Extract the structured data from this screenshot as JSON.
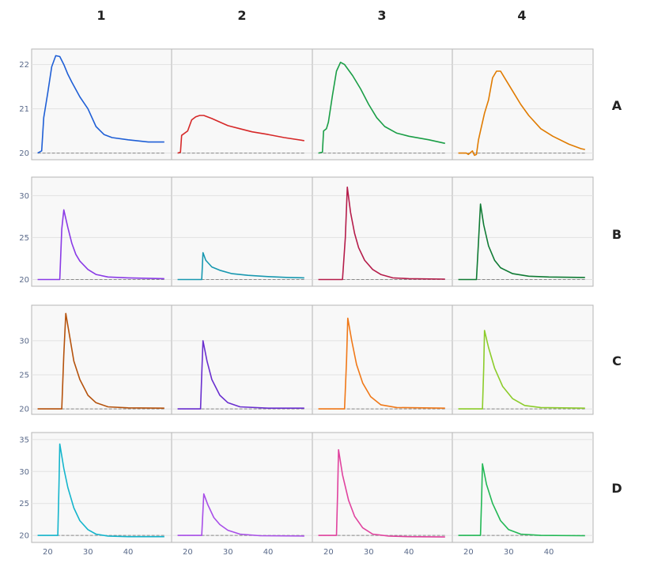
{
  "columns": [
    "1",
    "2",
    "3",
    "4"
  ],
  "rows": [
    "A",
    "B",
    "C",
    "D"
  ],
  "chart_data": {
    "type": "line",
    "layout": "4x4 small multiples, shared x axis per column, shared y axis per row",
    "xlim": [
      16,
      51
    ],
    "x_ticks": [
      20,
      30,
      40
    ],
    "grid": "horizontal gridlines only",
    "panel_background": "#f8f8f8",
    "baseline": {
      "value": 20,
      "style": "dashed",
      "color": "#888888"
    },
    "row_axes": [
      {
        "row": "A",
        "ylim": [
          19.85,
          22.35
        ],
        "y_ticks": [
          20,
          21,
          22
        ]
      },
      {
        "row": "B",
        "ylim": [
          19.2,
          32.2
        ],
        "y_ticks": [
          20,
          25,
          30
        ]
      },
      {
        "row": "C",
        "ylim": [
          19.2,
          35.2
        ],
        "y_ticks": [
          20,
          25,
          30
        ]
      },
      {
        "row": "D",
        "ylim": [
          18.9,
          36.1
        ],
        "y_ticks": [
          20,
          25,
          30,
          35
        ]
      }
    ],
    "panels": [
      {
        "row": "A",
        "col": "1",
        "color": "#1f5fd6",
        "points": [
          [
            17.5,
            20.0
          ],
          [
            18.5,
            20.05
          ],
          [
            19.0,
            20.8
          ],
          [
            20.0,
            21.35
          ],
          [
            21.0,
            21.95
          ],
          [
            22.0,
            22.2
          ],
          [
            23.0,
            22.18
          ],
          [
            24.0,
            22.0
          ],
          [
            25.0,
            21.78
          ],
          [
            26.0,
            21.6
          ],
          [
            28.0,
            21.27
          ],
          [
            30.0,
            21.0
          ],
          [
            32.0,
            20.6
          ],
          [
            34.0,
            20.42
          ],
          [
            36.0,
            20.35
          ],
          [
            40.0,
            20.3
          ],
          [
            45.0,
            20.25
          ],
          [
            49.0,
            20.25
          ]
        ]
      },
      {
        "row": "A",
        "col": "2",
        "color": "#d62828",
        "points": [
          [
            17.5,
            20.0
          ],
          [
            18.2,
            20.02
          ],
          [
            18.5,
            20.4
          ],
          [
            20.0,
            20.5
          ],
          [
            21.0,
            20.75
          ],
          [
            22.0,
            20.82
          ],
          [
            23.0,
            20.85
          ],
          [
            24.0,
            20.85
          ],
          [
            26.0,
            20.78
          ],
          [
            28.0,
            20.7
          ],
          [
            30.0,
            20.62
          ],
          [
            33.0,
            20.55
          ],
          [
            36.0,
            20.48
          ],
          [
            40.0,
            20.42
          ],
          [
            44.0,
            20.35
          ],
          [
            49.0,
            20.28
          ]
        ]
      },
      {
        "row": "A",
        "col": "3",
        "color": "#1a9e46",
        "points": [
          [
            17.5,
            20.0
          ],
          [
            18.5,
            20.02
          ],
          [
            18.8,
            20.5
          ],
          [
            19.5,
            20.55
          ],
          [
            20.0,
            20.7
          ],
          [
            21.0,
            21.3
          ],
          [
            22.0,
            21.85
          ],
          [
            23.0,
            22.05
          ],
          [
            24.0,
            22.0
          ],
          [
            26.0,
            21.75
          ],
          [
            28.0,
            21.45
          ],
          [
            30.0,
            21.1
          ],
          [
            32.0,
            20.8
          ],
          [
            34.0,
            20.6
          ],
          [
            37.0,
            20.45
          ],
          [
            40.0,
            20.38
          ],
          [
            45.0,
            20.3
          ],
          [
            49.0,
            20.22
          ]
        ]
      },
      {
        "row": "A",
        "col": "4",
        "color": "#e07b00",
        "points": [
          [
            17.5,
            20.0
          ],
          [
            19.5,
            20.0
          ],
          [
            20.0,
            19.97
          ],
          [
            21.0,
            20.05
          ],
          [
            21.5,
            19.95
          ],
          [
            22.0,
            19.97
          ],
          [
            22.5,
            20.3
          ],
          [
            23.0,
            20.5
          ],
          [
            24.0,
            20.9
          ],
          [
            25.0,
            21.2
          ],
          [
            26.0,
            21.7
          ],
          [
            27.0,
            21.85
          ],
          [
            28.0,
            21.85
          ],
          [
            29.0,
            21.7
          ],
          [
            31.0,
            21.4
          ],
          [
            33.0,
            21.1
          ],
          [
            35.0,
            20.85
          ],
          [
            38.0,
            20.55
          ],
          [
            41.0,
            20.38
          ],
          [
            45.0,
            20.2
          ],
          [
            48.0,
            20.1
          ],
          [
            49.0,
            20.08
          ]
        ]
      },
      {
        "row": "B",
        "col": "1",
        "color": "#8a3ae6",
        "points": [
          [
            17.5,
            20.0
          ],
          [
            23.0,
            20.0
          ],
          [
            23.5,
            26.0
          ],
          [
            24.0,
            28.3
          ],
          [
            25.0,
            26.2
          ],
          [
            26.0,
            24.3
          ],
          [
            27.0,
            23.0
          ],
          [
            28.0,
            22.2
          ],
          [
            30.0,
            21.2
          ],
          [
            32.0,
            20.6
          ],
          [
            35.0,
            20.3
          ],
          [
            40.0,
            20.2
          ],
          [
            49.0,
            20.1
          ]
        ]
      },
      {
        "row": "B",
        "col": "2",
        "color": "#1898b0",
        "points": [
          [
            17.5,
            20.0
          ],
          [
            23.5,
            20.0
          ],
          [
            23.8,
            23.2
          ],
          [
            24.5,
            22.3
          ],
          [
            26.0,
            21.5
          ],
          [
            28.0,
            21.1
          ],
          [
            31.0,
            20.7
          ],
          [
            35.0,
            20.5
          ],
          [
            40.0,
            20.35
          ],
          [
            45.0,
            20.25
          ],
          [
            49.0,
            20.2
          ]
        ]
      },
      {
        "row": "B",
        "col": "3",
        "color": "#b51c4a",
        "points": [
          [
            17.5,
            20.0
          ],
          [
            23.5,
            20.0
          ],
          [
            24.2,
            25.0
          ],
          [
            24.7,
            31.0
          ],
          [
            25.5,
            28.0
          ],
          [
            26.5,
            25.5
          ],
          [
            27.5,
            23.8
          ],
          [
            29.0,
            22.3
          ],
          [
            31.0,
            21.2
          ],
          [
            33.0,
            20.6
          ],
          [
            36.0,
            20.2
          ],
          [
            40.0,
            20.1
          ],
          [
            49.0,
            20.05
          ]
        ]
      },
      {
        "row": "B",
        "col": "4",
        "color": "#0f7a33",
        "points": [
          [
            17.5,
            20.0
          ],
          [
            22.0,
            20.0
          ],
          [
            22.5,
            24.5
          ],
          [
            23.0,
            29.0
          ],
          [
            23.8,
            26.5
          ],
          [
            25.0,
            24.0
          ],
          [
            26.5,
            22.3
          ],
          [
            28.0,
            21.4
          ],
          [
            31.0,
            20.7
          ],
          [
            35.0,
            20.4
          ],
          [
            40.0,
            20.3
          ],
          [
            49.0,
            20.25
          ]
        ]
      },
      {
        "row": "C",
        "col": "1",
        "color": "#b5520c",
        "points": [
          [
            17.5,
            20.0
          ],
          [
            23.5,
            20.0
          ],
          [
            24.0,
            28.0
          ],
          [
            24.5,
            34.0
          ],
          [
            25.5,
            30.5
          ],
          [
            26.5,
            27.0
          ],
          [
            28.0,
            24.3
          ],
          [
            30.0,
            22.0
          ],
          [
            32.0,
            20.9
          ],
          [
            35.0,
            20.3
          ],
          [
            40.0,
            20.15
          ],
          [
            49.0,
            20.1
          ]
        ]
      },
      {
        "row": "C",
        "col": "2",
        "color": "#6a2fcf",
        "points": [
          [
            17.5,
            20.0
          ],
          [
            23.2,
            20.0
          ],
          [
            23.5,
            25.0
          ],
          [
            23.8,
            30.0
          ],
          [
            24.8,
            27.0
          ],
          [
            26.0,
            24.3
          ],
          [
            28.0,
            22.0
          ],
          [
            30.0,
            20.9
          ],
          [
            33.0,
            20.3
          ],
          [
            40.0,
            20.1
          ],
          [
            49.0,
            20.1
          ]
        ]
      },
      {
        "row": "C",
        "col": "3",
        "color": "#f07818",
        "points": [
          [
            17.5,
            20.0
          ],
          [
            24.0,
            20.0
          ],
          [
            24.5,
            27.0
          ],
          [
            24.8,
            33.3
          ],
          [
            25.8,
            30.0
          ],
          [
            27.0,
            26.5
          ],
          [
            28.5,
            23.8
          ],
          [
            30.5,
            21.8
          ],
          [
            33.0,
            20.6
          ],
          [
            37.0,
            20.2
          ],
          [
            49.0,
            20.1
          ]
        ]
      },
      {
        "row": "C",
        "col": "4",
        "color": "#8ccc2a",
        "points": [
          [
            17.5,
            20.0
          ],
          [
            23.5,
            20.0
          ],
          [
            23.8,
            26.0
          ],
          [
            24.0,
            31.5
          ],
          [
            25.0,
            29.0
          ],
          [
            26.5,
            26.0
          ],
          [
            28.5,
            23.3
          ],
          [
            31.0,
            21.5
          ],
          [
            34.0,
            20.5
          ],
          [
            38.0,
            20.2
          ],
          [
            49.0,
            20.1
          ]
        ]
      },
      {
        "row": "D",
        "col": "1",
        "color": "#14b5cc",
        "points": [
          [
            17.5,
            20.0
          ],
          [
            22.5,
            20.0
          ],
          [
            22.8,
            28.0
          ],
          [
            23.0,
            34.3
          ],
          [
            24.0,
            30.5
          ],
          [
            25.0,
            27.5
          ],
          [
            26.5,
            24.3
          ],
          [
            28.0,
            22.3
          ],
          [
            30.0,
            20.9
          ],
          [
            32.0,
            20.2
          ],
          [
            35.0,
            19.9
          ],
          [
            40.0,
            19.8
          ],
          [
            49.0,
            19.8
          ]
        ]
      },
      {
        "row": "D",
        "col": "2",
        "color": "#a84ee8",
        "points": [
          [
            17.5,
            20.0
          ],
          [
            23.5,
            20.0
          ],
          [
            23.8,
            24.0
          ],
          [
            24.0,
            26.5
          ],
          [
            25.0,
            24.8
          ],
          [
            26.5,
            22.8
          ],
          [
            28.0,
            21.7
          ],
          [
            30.0,
            20.8
          ],
          [
            33.0,
            20.2
          ],
          [
            38.0,
            19.95
          ],
          [
            49.0,
            19.9
          ]
        ]
      },
      {
        "row": "D",
        "col": "3",
        "color": "#e0429e",
        "points": [
          [
            17.5,
            20.0
          ],
          [
            22.0,
            20.0
          ],
          [
            22.3,
            27.0
          ],
          [
            22.5,
            33.4
          ],
          [
            23.5,
            29.5
          ],
          [
            25.0,
            25.5
          ],
          [
            26.5,
            23.0
          ],
          [
            28.5,
            21.2
          ],
          [
            31.0,
            20.2
          ],
          [
            35.0,
            19.9
          ],
          [
            40.0,
            19.8
          ],
          [
            49.0,
            19.75
          ]
        ]
      },
      {
        "row": "D",
        "col": "4",
        "color": "#22b855",
        "points": [
          [
            17.5,
            20.0
          ],
          [
            23.0,
            20.0
          ],
          [
            23.3,
            26.0
          ],
          [
            23.5,
            31.2
          ],
          [
            24.5,
            28.0
          ],
          [
            26.0,
            25.0
          ],
          [
            28.0,
            22.3
          ],
          [
            30.0,
            20.9
          ],
          [
            33.0,
            20.2
          ],
          [
            38.0,
            20.0
          ],
          [
            49.0,
            19.95
          ]
        ]
      }
    ]
  }
}
